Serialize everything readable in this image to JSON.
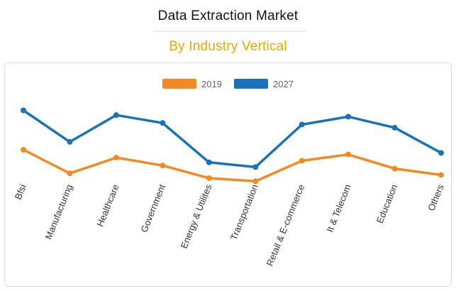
{
  "header": {
    "title": "Data Extraction Market",
    "subtitle": "By Industry Vertical"
  },
  "colors": {
    "subtitle": "#e8a800",
    "series_2019": "#f28a24",
    "series_2027": "#1a73b8"
  },
  "chart_data": {
    "type": "line",
    "title": "Data Extraction Market",
    "subtitle": "By Industry Vertical",
    "xlabel": "",
    "ylabel": "",
    "grid": false,
    "legend_position": "top-center",
    "y_axis_visible": false,
    "ylim": [
      0,
      100
    ],
    "categories": [
      "Bfsi",
      "Manufacturing",
      "Healthcare",
      "Government",
      "Energy & Utilites",
      "Transportation",
      "Retail & E-commerce",
      "It & Telecom",
      "Education",
      "Others"
    ],
    "series": [
      {
        "name": "2019",
        "color": "#f28a24",
        "values": [
          50,
          35,
          45,
          40,
          32,
          30,
          43,
          47,
          38,
          34
        ]
      },
      {
        "name": "2027",
        "color": "#1a73b8",
        "values": [
          75,
          55,
          72,
          67,
          42,
          39,
          66,
          71,
          64,
          48
        ]
      }
    ]
  }
}
